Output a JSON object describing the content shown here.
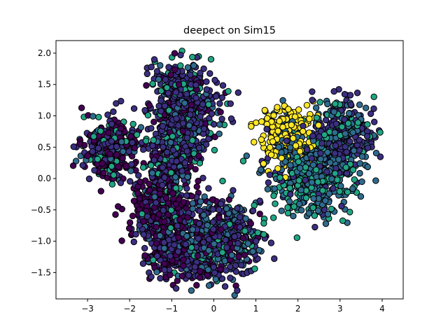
{
  "chart_data": {
    "type": "scatter",
    "title": "deepect on Sim15",
    "xlabel": "",
    "ylabel": "",
    "xlim": [
      -3.75,
      4.5
    ],
    "ylim": [
      -1.92,
      2.2
    ],
    "xticks": [
      -3,
      -2,
      -1,
      0,
      1,
      2,
      3,
      4
    ],
    "yticks": [
      -1.5,
      -1.0,
      -0.5,
      0.0,
      0.5,
      1.0,
      1.5,
      2.0
    ],
    "xtick_labels": [
      "−3",
      "−2",
      "−1",
      "0",
      "1",
      "2",
      "3",
      "4"
    ],
    "ytick_labels": [
      "−1.5",
      "−1.0",
      "−0.5",
      "0.0",
      "0.5",
      "1.0",
      "1.5",
      "2.0"
    ],
    "grid": false,
    "marker_edge_color": "#000000",
    "colors": {
      "dark_purple": "#440154",
      "indigo": "#3b2f80",
      "blue_teal": "#2f6b8e",
      "green": "#21a585",
      "yellow": "#fde725"
    },
    "clusters": [
      {
        "center": [
          -2.5,
          0.5
        ],
        "spread": [
          0.32,
          0.22
        ],
        "count": 380,
        "colors": [
          "dark_purple",
          "indigo",
          "blue_teal",
          "green"
        ],
        "weights": [
          0.45,
          0.3,
          0.12,
          0.13
        ]
      },
      {
        "center": [
          -0.7,
          1.2
        ],
        "spread": [
          0.42,
          0.32
        ],
        "count": 520,
        "colors": [
          "indigo",
          "dark_purple",
          "blue_teal",
          "green"
        ],
        "weights": [
          0.62,
          0.14,
          0.1,
          0.14
        ]
      },
      {
        "center": [
          -0.9,
          0.45
        ],
        "spread": [
          0.38,
          0.22
        ],
        "count": 220,
        "colors": [
          "indigo",
          "green",
          "blue_teal",
          "dark_purple"
        ],
        "weights": [
          0.45,
          0.25,
          0.15,
          0.15
        ]
      },
      {
        "center": [
          -1.2,
          -0.5
        ],
        "spread": [
          0.38,
          0.38
        ],
        "count": 520,
        "colors": [
          "dark_purple",
          "indigo",
          "blue_teal",
          "green"
        ],
        "weights": [
          0.55,
          0.3,
          0.09,
          0.06
        ]
      },
      {
        "center": [
          0.1,
          -1.0
        ],
        "spread": [
          0.48,
          0.3
        ],
        "count": 560,
        "colors": [
          "indigo",
          "blue_teal",
          "dark_purple",
          "green"
        ],
        "weights": [
          0.45,
          0.32,
          0.15,
          0.08
        ]
      },
      {
        "center": [
          -0.9,
          -1.25
        ],
        "spread": [
          0.4,
          0.2
        ],
        "count": 220,
        "colors": [
          "dark_purple",
          "indigo",
          "blue_teal"
        ],
        "weights": [
          0.4,
          0.45,
          0.15
        ]
      },
      {
        "center": [
          1.75,
          0.72
        ],
        "spread": [
          0.32,
          0.24
        ],
        "count": 250,
        "colors": [
          "yellow",
          "blue_teal",
          "indigo"
        ],
        "weights": [
          0.75,
          0.15,
          0.1
        ]
      },
      {
        "center": [
          3.05,
          0.68
        ],
        "spread": [
          0.38,
          0.28
        ],
        "count": 330,
        "colors": [
          "indigo",
          "blue_teal",
          "green"
        ],
        "weights": [
          0.55,
          0.3,
          0.15
        ]
      },
      {
        "center": [
          2.35,
          0.05
        ],
        "spread": [
          0.5,
          0.3
        ],
        "count": 520,
        "colors": [
          "blue_teal",
          "green",
          "indigo"
        ],
        "weights": [
          0.55,
          0.3,
          0.15
        ]
      }
    ]
  }
}
